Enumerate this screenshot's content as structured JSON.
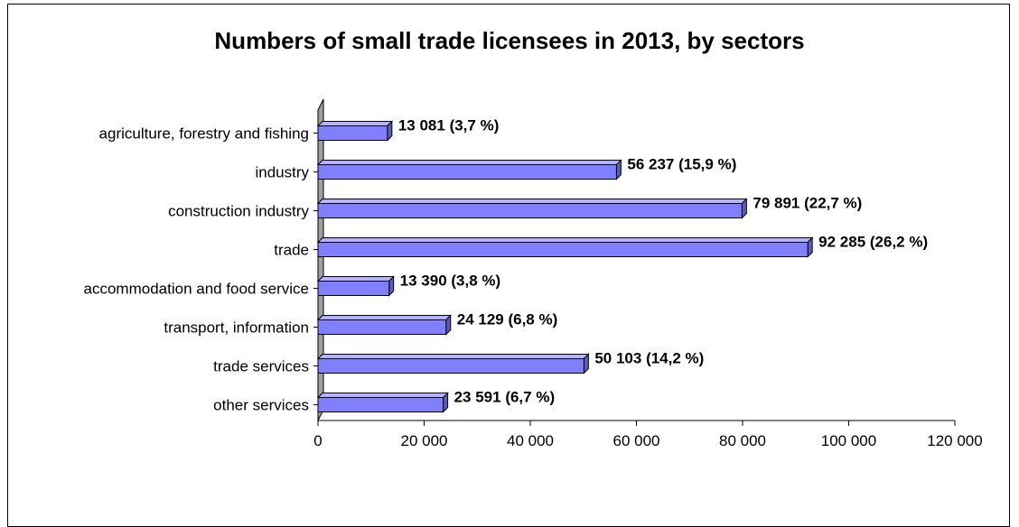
{
  "chart_data": {
    "type": "bar",
    "orientation": "horizontal",
    "title": "Numbers of small trade licensees in 2013, by sectors",
    "categories": [
      "agriculture, forestry and fishing",
      "industry",
      "construction industry",
      "trade",
      "accommodation and food service",
      "transport, information",
      "trade services",
      "other services"
    ],
    "values": [
      13081,
      56237,
      79891,
      92285,
      13390,
      24129,
      50103,
      23591
    ],
    "data_labels": [
      "13 081 (3,7 %)",
      "56 237 (15,9 %)",
      "79 891 (22,7 %)",
      "92 285 (26,2 %)",
      "13 390 (3,8 %)",
      "24 129 (6,8 %)",
      "50 103 (14,2 %)",
      "23 591 (6,7 %)"
    ],
    "xlim": [
      0,
      120000
    ],
    "x_ticks": [
      0,
      20000,
      40000,
      60000,
      80000,
      100000,
      120000
    ],
    "x_tick_labels": [
      "0",
      "20 000",
      "40 000",
      "60 000",
      "80 000",
      "100 000",
      "120 000"
    ],
    "bar_color": "#8080ff",
    "grid": false,
    "style": "3d"
  }
}
